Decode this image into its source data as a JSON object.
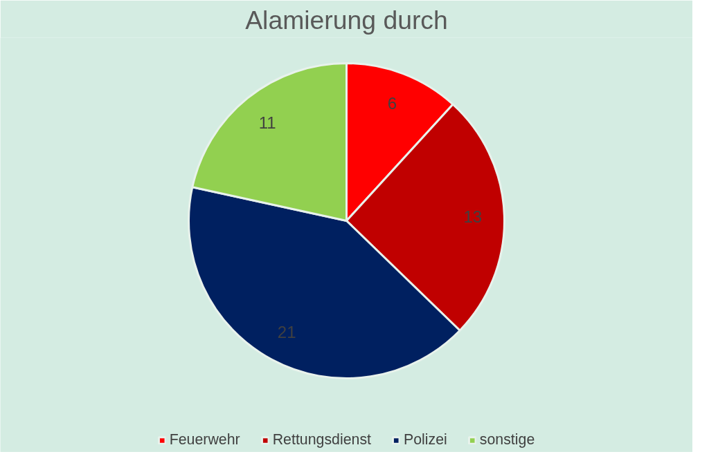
{
  "chart_data": {
    "type": "pie",
    "title": "Alamierung durch",
    "categories": [
      "Feuerwehr",
      "Rettungsdienst",
      "Polizei",
      "sonstige"
    ],
    "values": [
      6,
      13,
      21,
      11
    ],
    "colors": [
      "#ff0000",
      "#c00000",
      "#002060",
      "#92d050"
    ],
    "data_labels": true,
    "legend": "bottom"
  }
}
